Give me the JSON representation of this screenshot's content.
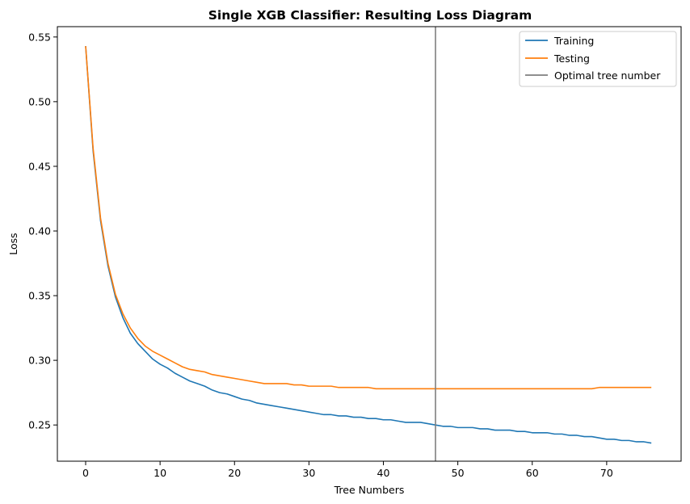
{
  "chart_data": {
    "type": "line",
    "title": "Single XGB Classifier: Resulting Loss Diagram",
    "xlabel": "Tree Numbers",
    "ylabel": "Loss",
    "xlim": [
      -3.8,
      80
    ],
    "ylim": [
      0.222,
      0.558
    ],
    "xticks": [
      0,
      10,
      20,
      30,
      40,
      50,
      60,
      70
    ],
    "yticks": [
      0.25,
      0.3,
      0.35,
      0.4,
      0.45,
      0.5,
      0.55
    ],
    "ytick_labels": [
      "0.25",
      "0.30",
      "0.35",
      "0.40",
      "0.45",
      "0.50",
      "0.55"
    ],
    "grid": false,
    "legend_position": "top-right",
    "vline": {
      "name": "Optimal tree number",
      "x": 47,
      "color": "#7f7f7f"
    },
    "series": [
      {
        "name": "Training",
        "color": "#1f77b4",
        "values": [
          0.543,
          0.462,
          0.408,
          0.373,
          0.349,
          0.333,
          0.321,
          0.313,
          0.307,
          0.301,
          0.297,
          0.294,
          0.29,
          0.287,
          0.284,
          0.282,
          0.28,
          0.277,
          0.275,
          0.274,
          0.272,
          0.27,
          0.269,
          0.267,
          0.266,
          0.265,
          0.264,
          0.263,
          0.262,
          0.261,
          0.26,
          0.259,
          0.258,
          0.258,
          0.257,
          0.257,
          0.256,
          0.256,
          0.255,
          0.255,
          0.254,
          0.254,
          0.253,
          0.252,
          0.252,
          0.252,
          0.251,
          0.25,
          0.249,
          0.249,
          0.248,
          0.248,
          0.248,
          0.247,
          0.247,
          0.246,
          0.246,
          0.246,
          0.245,
          0.245,
          0.244,
          0.244,
          0.244,
          0.243,
          0.243,
          0.242,
          0.242,
          0.241,
          0.241,
          0.24,
          0.239,
          0.239,
          0.238,
          0.238,
          0.237,
          0.237,
          0.236
        ]
      },
      {
        "name": "Testing",
        "color": "#ff7f0e",
        "values": [
          0.543,
          0.464,
          0.41,
          0.375,
          0.351,
          0.336,
          0.325,
          0.317,
          0.311,
          0.307,
          0.304,
          0.301,
          0.298,
          0.295,
          0.293,
          0.292,
          0.291,
          0.289,
          0.288,
          0.287,
          0.286,
          0.285,
          0.284,
          0.283,
          0.282,
          0.282,
          0.282,
          0.282,
          0.281,
          0.281,
          0.28,
          0.28,
          0.28,
          0.28,
          0.279,
          0.279,
          0.279,
          0.279,
          0.279,
          0.278,
          0.278,
          0.278,
          0.278,
          0.278,
          0.278,
          0.278,
          0.278,
          0.278,
          0.278,
          0.278,
          0.278,
          0.278,
          0.278,
          0.278,
          0.278,
          0.278,
          0.278,
          0.278,
          0.278,
          0.278,
          0.278,
          0.278,
          0.278,
          0.278,
          0.278,
          0.278,
          0.278,
          0.278,
          0.278,
          0.279,
          0.279,
          0.279,
          0.279,
          0.279,
          0.279,
          0.279,
          0.279
        ]
      }
    ]
  }
}
